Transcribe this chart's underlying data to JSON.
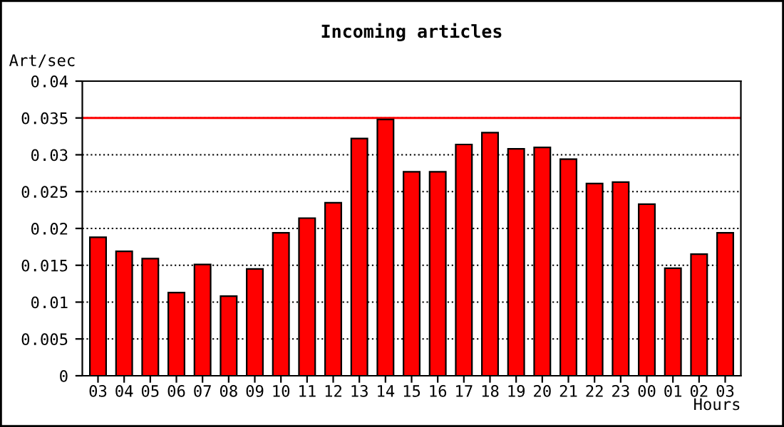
{
  "chart_data": {
    "type": "bar",
    "title": "Incoming articles",
    "ylabel": "Art/sec",
    "xlabel": "Hours",
    "categories": [
      "03",
      "04",
      "05",
      "06",
      "07",
      "08",
      "09",
      "10",
      "11",
      "12",
      "13",
      "14",
      "15",
      "16",
      "17",
      "18",
      "19",
      "20",
      "21",
      "22",
      "23",
      "00",
      "01",
      "02",
      "03"
    ],
    "values": [
      0.0188,
      0.0169,
      0.0159,
      0.0113,
      0.0151,
      0.0108,
      0.0145,
      0.0194,
      0.0214,
      0.0235,
      0.0322,
      0.0348,
      0.0277,
      0.0277,
      0.0314,
      0.033,
      0.0308,
      0.031,
      0.0294,
      0.0261,
      0.0263,
      0.0233,
      0.0146,
      0.0165,
      0.0194
    ],
    "color": "#ff0000",
    "ylim": [
      0,
      0.04
    ],
    "yticks": [
      0,
      0.005,
      0.01,
      0.015,
      0.02,
      0.025,
      0.03,
      0.035,
      0.04
    ],
    "grid": "y",
    "line_style": "dotted",
    "ref_lines": [
      {
        "axis": "y",
        "value": 0.035,
        "color": "#ff0000",
        "line_style": "solid"
      }
    ]
  }
}
